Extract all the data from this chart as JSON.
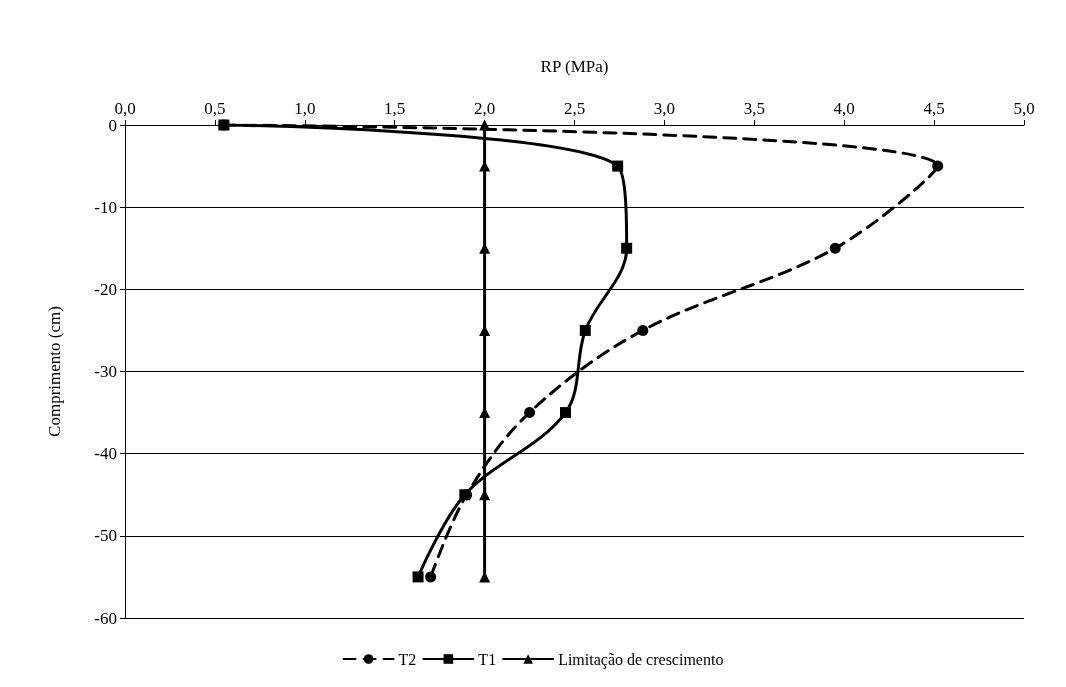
{
  "chart_data": {
    "type": "line",
    "xlabel": "RP (MPa)",
    "ylabel": "Comprimento (cm)",
    "xlim": [
      0,
      5
    ],
    "xticks": [
      {
        "value": 0,
        "label": "0,0"
      },
      {
        "value": 0.5,
        "label": "0,5"
      },
      {
        "value": 1,
        "label": "1,0"
      },
      {
        "value": 1.5,
        "label": "1,5"
      },
      {
        "value": 2,
        "label": "2,0"
      },
      {
        "value": 2.5,
        "label": "2,5"
      },
      {
        "value": 3,
        "label": "3,0"
      },
      {
        "value": 3.5,
        "label": "3,5"
      },
      {
        "value": 4,
        "label": "4,0"
      },
      {
        "value": 4.5,
        "label": "4,5"
      },
      {
        "value": 5,
        "label": "5,0"
      }
    ],
    "ylim": [
      -60,
      0
    ],
    "yticks": [
      -60,
      -50,
      -40,
      -30,
      -20,
      -10,
      0
    ],
    "grid": "y",
    "legend": "bottom",
    "series": [
      {
        "name": "T2",
        "color": "#000000",
        "marker": "circle",
        "line_style": "dashed",
        "x": [
          0.55,
          4.52,
          3.95,
          2.88,
          2.25,
          1.9,
          1.7
        ],
        "values": [
          0,
          -5,
          -15,
          -25,
          -35,
          -45,
          -55
        ]
      },
      {
        "name": "T1",
        "color": "#000000",
        "marker": "square",
        "line_style": "solid",
        "x": [
          0.55,
          2.74,
          2.79,
          2.56,
          2.45,
          1.89,
          1.63
        ],
        "values": [
          0,
          -5,
          -15,
          -25,
          -35,
          -45,
          -55
        ]
      },
      {
        "name": "Limitação de crescimento",
        "color": "#000000",
        "marker": "triangle",
        "line_style": "solid",
        "x": [
          2,
          2,
          2,
          2,
          2,
          2,
          2
        ],
        "values": [
          0,
          -5,
          -15,
          -25,
          -35,
          -45,
          -55
        ]
      }
    ]
  }
}
